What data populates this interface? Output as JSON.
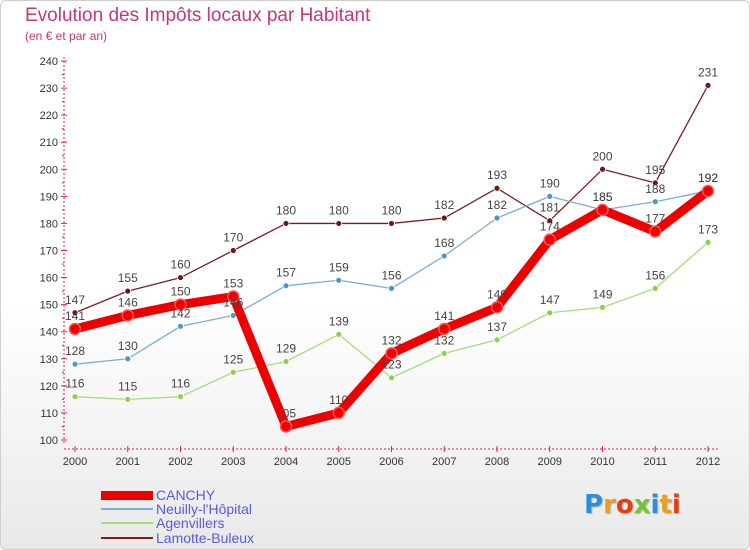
{
  "title": "Evolution des Impôts locaux par Habitant",
  "subtitle": "(en € et par an)",
  "logo": "Proxiti",
  "chart_data": {
    "type": "line",
    "title": "Evolution des Impôts locaux par Habitant",
    "subtitle": "(en € et par an)",
    "xlabel": "",
    "ylabel": "",
    "categories": [
      "2000",
      "2001",
      "2002",
      "2003",
      "2004",
      "2005",
      "2006",
      "2007",
      "2008",
      "2009",
      "2010",
      "2011",
      "2012"
    ],
    "ylim": [
      100,
      240
    ],
    "yticks": [
      100,
      110,
      120,
      130,
      140,
      150,
      160,
      170,
      180,
      190,
      200,
      210,
      220,
      230,
      240
    ],
    "grid": false,
    "legend_position": "bottom-left",
    "series": [
      {
        "name": "Lamotte-Buleux",
        "color": "#7a1f1f",
        "marker": "#6e1a1a",
        "values": [
          147,
          155,
          160,
          170,
          180,
          180,
          180,
          182,
          193,
          181,
          200,
          195,
          231
        ],
        "labels": [
          "147",
          "155",
          "160",
          "170",
          "180",
          "180",
          "180",
          "182",
          "193",
          "181",
          "200",
          "195",
          "231"
        ]
      },
      {
        "name": "Agenvillers",
        "color": "#a6dc7c",
        "marker": "#8fd04a",
        "values": [
          116,
          115,
          116,
          125,
          129,
          139,
          123,
          132,
          137,
          147,
          149,
          156,
          173
        ],
        "labels": [
          "116",
          "115",
          "116",
          "125",
          "129",
          "139",
          "123",
          "132",
          "137",
          "147",
          "149",
          "156",
          "173"
        ]
      },
      {
        "name": "Neuilly-l'Hôpital",
        "color": "#7aaed8",
        "marker": "#4d97d0",
        "values": [
          128,
          130,
          142,
          146,
          157,
          159,
          156,
          168,
          182,
          190,
          185,
          188,
          192
        ],
        "labels": [
          "128",
          "130",
          "142",
          "146",
          "157",
          "159",
          "156",
          "168",
          "182",
          "190",
          "185",
          "188",
          "192"
        ]
      },
      {
        "name": "CANCHY",
        "color": "#ee0000",
        "marker": "#ee0000",
        "values": [
          141,
          146,
          150,
          153,
          105,
          110,
          132,
          141,
          149,
          174,
          185,
          177,
          192
        ],
        "labels": [
          "141",
          "146",
          "150",
          "153",
          "105",
          "110",
          "132",
          "141",
          "149",
          "174",
          "185",
          "177",
          "192"
        ]
      }
    ]
  },
  "legend": [
    {
      "name": "CANCHY",
      "color": "#ee0000",
      "thickness": "thick"
    },
    {
      "name": "Neuilly-l'Hôpital",
      "color": "#7aaed8",
      "thickness": "thin"
    },
    {
      "name": "Agenvillers",
      "color": "#a6dc7c",
      "thickness": "thin"
    },
    {
      "name": "Lamotte-Buleux",
      "color": "#7a1f1f",
      "thickness": "thin"
    }
  ]
}
